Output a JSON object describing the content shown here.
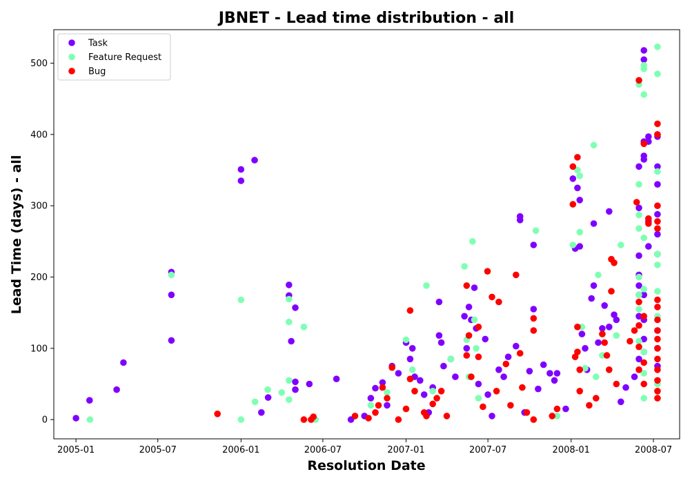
{
  "chart_data": {
    "type": "scatter",
    "title": "JBNET - Lead time distribution - all",
    "xlabel": "Resolution Date",
    "ylabel": "Lead Time (days) - all",
    "x_ticks": [
      "2005-01",
      "2005-07",
      "2006-01",
      "2006-07",
      "2007-01",
      "2007-07",
      "2008-01",
      "2008-07"
    ],
    "y_ticks": [
      0,
      100,
      200,
      300,
      400,
      500
    ],
    "xlim": [
      "2004-11-13",
      "2008-08-28"
    ],
    "ylim": [
      -27,
      547
    ],
    "legend_position": "top-left",
    "grid": false,
    "series": [
      {
        "name": "Task",
        "color": "#8000ff",
        "points": [
          [
            "2005-01-01",
            2
          ],
          [
            "2005-01-31",
            27
          ],
          [
            "2005-04-01",
            42
          ],
          [
            "2005-04-16",
            80
          ],
          [
            "2005-07-31",
            207
          ],
          [
            "2005-07-31",
            175
          ],
          [
            "2005-07-31",
            111
          ],
          [
            "2006-01-01",
            351
          ],
          [
            "2006-01-01",
            335
          ],
          [
            "2006-01-31",
            364
          ],
          [
            "2006-02-15",
            10
          ],
          [
            "2006-03-02",
            31
          ],
          [
            "2006-04-17",
            189
          ],
          [
            "2006-04-17",
            174
          ],
          [
            "2006-04-22",
            110
          ],
          [
            "2006-05-01",
            157
          ],
          [
            "2006-05-01",
            53
          ],
          [
            "2006-05-01",
            42
          ],
          [
            "2006-06-01",
            50
          ],
          [
            "2006-07-31",
            57
          ],
          [
            "2006-09-01",
            0
          ],
          [
            "2006-10-01",
            5
          ],
          [
            "2006-10-15",
            30
          ],
          [
            "2006-10-25",
            44
          ],
          [
            "2006-11-10",
            52
          ],
          [
            "2006-11-20",
            20
          ],
          [
            "2006-12-01",
            75
          ],
          [
            "2006-12-15",
            65
          ],
          [
            "2007-01-01",
            108
          ],
          [
            "2007-01-10",
            85
          ],
          [
            "2007-01-15",
            100
          ],
          [
            "2007-01-20",
            60
          ],
          [
            "2007-02-01",
            55
          ],
          [
            "2007-02-10",
            35
          ],
          [
            "2007-02-20",
            10
          ],
          [
            "2007-03-01",
            45
          ],
          [
            "2007-03-15",
            118
          ],
          [
            "2007-03-15",
            165
          ],
          [
            "2007-03-20",
            108
          ],
          [
            "2007-03-25",
            75
          ],
          [
            "2007-04-10",
            85
          ],
          [
            "2007-04-20",
            60
          ],
          [
            "2007-05-10",
            145
          ],
          [
            "2007-05-15",
            100
          ],
          [
            "2007-05-20",
            158
          ],
          [
            "2007-05-25",
            140
          ],
          [
            "2007-06-01",
            185
          ],
          [
            "2007-06-05",
            128
          ],
          [
            "2007-06-10",
            50
          ],
          [
            "2007-06-25",
            113
          ],
          [
            "2007-07-01",
            35
          ],
          [
            "2007-07-10",
            5
          ],
          [
            "2007-07-25",
            70
          ],
          [
            "2007-08-05",
            60
          ],
          [
            "2007-08-15",
            88
          ],
          [
            "2007-09-01",
            103
          ],
          [
            "2007-09-10",
            285
          ],
          [
            "2007-09-10",
            280
          ],
          [
            "2007-09-20",
            10
          ],
          [
            "2007-10-01",
            68
          ],
          [
            "2007-10-10",
            245
          ],
          [
            "2007-10-10",
            155
          ],
          [
            "2007-10-20",
            43
          ],
          [
            "2007-11-01",
            77
          ],
          [
            "2007-11-15",
            65
          ],
          [
            "2007-11-25",
            55
          ],
          [
            "2007-12-01",
            65
          ],
          [
            "2007-12-20",
            15
          ],
          [
            "2008-01-05",
            338
          ],
          [
            "2008-01-10",
            240
          ],
          [
            "2008-01-15",
            325
          ],
          [
            "2008-01-20",
            308
          ],
          [
            "2008-01-20",
            243
          ],
          [
            "2008-01-25",
            120
          ],
          [
            "2008-02-01",
            100
          ],
          [
            "2008-02-05",
            70
          ],
          [
            "2008-02-15",
            170
          ],
          [
            "2008-02-20",
            275
          ],
          [
            "2008-02-20",
            188
          ],
          [
            "2008-03-01",
            108
          ],
          [
            "2008-03-10",
            128
          ],
          [
            "2008-03-15",
            160
          ],
          [
            "2008-03-25",
            292
          ],
          [
            "2008-03-25",
            130
          ],
          [
            "2008-04-05",
            147
          ],
          [
            "2008-04-10",
            140
          ],
          [
            "2008-04-20",
            25
          ],
          [
            "2008-05-01",
            45
          ],
          [
            "2008-05-20",
            60
          ],
          [
            "2008-05-30",
            355
          ],
          [
            "2008-05-30",
            297
          ],
          [
            "2008-05-30",
            230
          ],
          [
            "2008-05-30",
            203
          ],
          [
            "2008-05-30",
            188
          ],
          [
            "2008-05-30",
            175
          ],
          [
            "2008-05-30",
            145
          ],
          [
            "2008-05-30",
            85
          ],
          [
            "2008-06-10",
            518
          ],
          [
            "2008-06-10",
            505
          ],
          [
            "2008-06-10",
            390
          ],
          [
            "2008-06-10",
            370
          ],
          [
            "2008-06-10",
            365
          ],
          [
            "2008-06-10",
            175
          ],
          [
            "2008-06-10",
            140
          ],
          [
            "2008-06-10",
            113
          ],
          [
            "2008-06-10",
            95
          ],
          [
            "2008-06-20",
            397
          ],
          [
            "2008-06-20",
            390
          ],
          [
            "2008-06-20",
            243
          ],
          [
            "2008-06-20",
            278
          ],
          [
            "2008-07-10",
            400
          ],
          [
            "2008-07-10",
            397
          ],
          [
            "2008-07-10",
            355
          ],
          [
            "2008-07-10",
            330
          ],
          [
            "2008-07-10",
            288
          ],
          [
            "2008-07-10",
            260
          ],
          [
            "2008-07-10",
            232
          ],
          [
            "2008-07-10",
            125
          ],
          [
            "2008-07-10",
            100
          ],
          [
            "2008-07-10",
            75
          ]
        ]
      },
      {
        "name": "Feature Request",
        "color": "#80ffb4",
        "points": [
          [
            "2005-02-01",
            0
          ],
          [
            "2005-07-31",
            203
          ],
          [
            "2006-01-01",
            168
          ],
          [
            "2006-01-01",
            0
          ],
          [
            "2006-02-01",
            25
          ],
          [
            "2006-03-01",
            42
          ],
          [
            "2006-04-01",
            38
          ],
          [
            "2006-04-17",
            169
          ],
          [
            "2006-04-17",
            137
          ],
          [
            "2006-04-17",
            55
          ],
          [
            "2006-04-17",
            28
          ],
          [
            "2006-05-20",
            130
          ],
          [
            "2006-06-15",
            0
          ],
          [
            "2006-10-15",
            20
          ],
          [
            "2006-11-20",
            38
          ],
          [
            "2007-01-01",
            112
          ],
          [
            "2007-01-15",
            70
          ],
          [
            "2007-02-15",
            188
          ],
          [
            "2007-03-01",
            40
          ],
          [
            "2007-04-10",
            85
          ],
          [
            "2007-05-10",
            215
          ],
          [
            "2007-05-15",
            112
          ],
          [
            "2007-05-20",
            60
          ],
          [
            "2007-05-28",
            250
          ],
          [
            "2007-06-01",
            140
          ],
          [
            "2007-06-05",
            100
          ],
          [
            "2007-06-10",
            30
          ],
          [
            "2007-10-15",
            265
          ],
          [
            "2007-12-01",
            5
          ],
          [
            "2008-01-05",
            245
          ],
          [
            "2008-01-15",
            350
          ],
          [
            "2008-01-20",
            342
          ],
          [
            "2008-01-20",
            263
          ],
          [
            "2008-01-25",
            130
          ],
          [
            "2008-02-01",
            72
          ],
          [
            "2008-02-20",
            385
          ],
          [
            "2008-02-25",
            60
          ],
          [
            "2008-03-01",
            203
          ],
          [
            "2008-03-10",
            90
          ],
          [
            "2008-04-10",
            118
          ],
          [
            "2008-04-20",
            245
          ],
          [
            "2008-05-30",
            330
          ],
          [
            "2008-05-30",
            287
          ],
          [
            "2008-05-30",
            268
          ],
          [
            "2008-05-30",
            200
          ],
          [
            "2008-05-30",
            175
          ],
          [
            "2008-05-30",
            155
          ],
          [
            "2008-05-30",
            110
          ],
          [
            "2008-05-30",
            470
          ],
          [
            "2008-06-10",
            497
          ],
          [
            "2008-06-10",
            492
          ],
          [
            "2008-06-10",
            456
          ],
          [
            "2008-06-10",
            255
          ],
          [
            "2008-06-10",
            183
          ],
          [
            "2008-06-10",
            95
          ],
          [
            "2008-06-10",
            65
          ],
          [
            "2008-06-10",
            30
          ],
          [
            "2008-07-10",
            523
          ],
          [
            "2008-07-10",
            485
          ],
          [
            "2008-07-10",
            348
          ],
          [
            "2008-07-10",
            232
          ],
          [
            "2008-07-10",
            217
          ],
          [
            "2008-07-10",
            180
          ],
          [
            "2008-07-10",
            145
          ],
          [
            "2008-07-10",
            50
          ],
          [
            "2008-07-10",
            40
          ]
        ]
      },
      {
        "name": "Bug",
        "color": "#ff0000",
        "points": [
          [
            "2005-11-10",
            8
          ],
          [
            "2006-05-20",
            0
          ],
          [
            "2006-06-05",
            0
          ],
          [
            "2006-06-10",
            4
          ],
          [
            "2006-09-10",
            5
          ],
          [
            "2006-10-10",
            2
          ],
          [
            "2006-10-25",
            10
          ],
          [
            "2006-11-01",
            20
          ],
          [
            "2006-11-10",
            45
          ],
          [
            "2006-11-20",
            30
          ],
          [
            "2006-12-01",
            73
          ],
          [
            "2006-12-15",
            0
          ],
          [
            "2007-01-01",
            15
          ],
          [
            "2007-01-10",
            57
          ],
          [
            "2007-01-10",
            153
          ],
          [
            "2007-01-20",
            40
          ],
          [
            "2007-02-10",
            10
          ],
          [
            "2007-02-15",
            5
          ],
          [
            "2007-03-01",
            22
          ],
          [
            "2007-03-10",
            30
          ],
          [
            "2007-03-20",
            40
          ],
          [
            "2007-04-01",
            5
          ],
          [
            "2007-05-15",
            188
          ],
          [
            "2007-05-15",
            90
          ],
          [
            "2007-05-20",
            118
          ],
          [
            "2007-05-25",
            60
          ],
          [
            "2007-06-10",
            130
          ],
          [
            "2007-06-10",
            88
          ],
          [
            "2007-06-20",
            18
          ],
          [
            "2007-06-30",
            208
          ],
          [
            "2007-07-10",
            172
          ],
          [
            "2007-07-20",
            40
          ],
          [
            "2007-07-25",
            165
          ],
          [
            "2007-08-10",
            78
          ],
          [
            "2007-08-20",
            20
          ],
          [
            "2007-09-01",
            203
          ],
          [
            "2007-09-10",
            93
          ],
          [
            "2007-09-15",
            45
          ],
          [
            "2007-09-25",
            10
          ],
          [
            "2007-10-10",
            142
          ],
          [
            "2007-10-10",
            125
          ],
          [
            "2007-10-10",
            0
          ],
          [
            "2007-11-20",
            5
          ],
          [
            "2007-12-01",
            15
          ],
          [
            "2008-01-05",
            355
          ],
          [
            "2008-01-05",
            302
          ],
          [
            "2008-01-10",
            88
          ],
          [
            "2008-01-15",
            368
          ],
          [
            "2008-01-15",
            130
          ],
          [
            "2008-01-15",
            95
          ],
          [
            "2008-01-20",
            70
          ],
          [
            "2008-01-20",
            40
          ],
          [
            "2008-02-10",
            20
          ],
          [
            "2008-02-25",
            30
          ],
          [
            "2008-03-10",
            120
          ],
          [
            "2008-03-15",
            108
          ],
          [
            "2008-03-20",
            90
          ],
          [
            "2008-03-25",
            70
          ],
          [
            "2008-03-30",
            225
          ],
          [
            "2008-03-30",
            180
          ],
          [
            "2008-04-05",
            220
          ],
          [
            "2008-04-10",
            50
          ],
          [
            "2008-05-10",
            110
          ],
          [
            "2008-05-20",
            125
          ],
          [
            "2008-05-25",
            305
          ],
          [
            "2008-05-30",
            476
          ],
          [
            "2008-05-30",
            165
          ],
          [
            "2008-05-30",
            132
          ],
          [
            "2008-05-30",
            102
          ],
          [
            "2008-05-30",
            70
          ],
          [
            "2008-06-10",
            387
          ],
          [
            "2008-06-10",
            145
          ],
          [
            "2008-06-10",
            80
          ],
          [
            "2008-06-10",
            50
          ],
          [
            "2008-06-20",
            282
          ],
          [
            "2008-06-20",
            275
          ],
          [
            "2008-07-10",
            415
          ],
          [
            "2008-07-10",
            400
          ],
          [
            "2008-07-10",
            300
          ],
          [
            "2008-07-10",
            278
          ],
          [
            "2008-07-10",
            268
          ],
          [
            "2008-07-10",
            168
          ],
          [
            "2008-07-10",
            158
          ],
          [
            "2008-07-10",
            140
          ],
          [
            "2008-07-10",
            125
          ],
          [
            "2008-07-10",
            113
          ],
          [
            "2008-07-10",
            100
          ],
          [
            "2008-07-10",
            85
          ],
          [
            "2008-07-10",
            70
          ],
          [
            "2008-07-10",
            55
          ],
          [
            "2008-07-10",
            40
          ],
          [
            "2008-07-10",
            30
          ]
        ]
      }
    ]
  }
}
